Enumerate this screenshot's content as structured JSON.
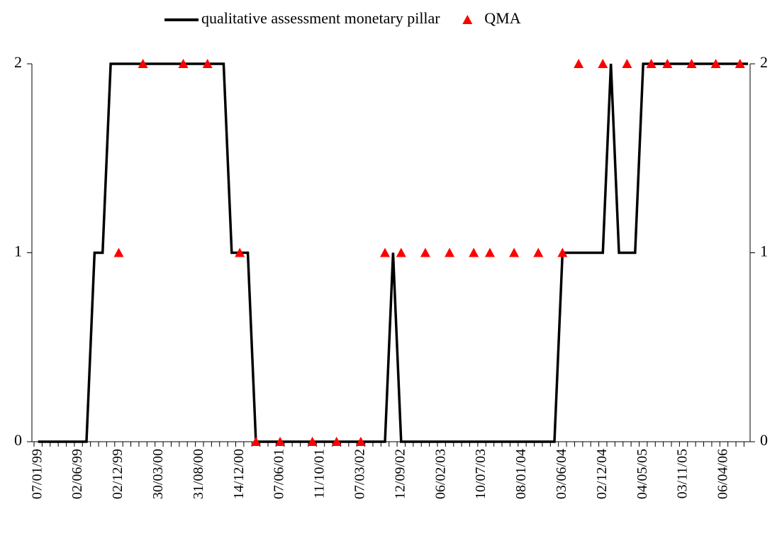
{
  "chart_data": {
    "type": "line",
    "categories": [
      "07/01/99",
      null,
      null,
      null,
      null,
      "02/06/99",
      null,
      null,
      null,
      null,
      "02/12/99",
      null,
      null,
      null,
      null,
      "30/03/00",
      null,
      null,
      null,
      null,
      "31/08/00",
      null,
      null,
      null,
      null,
      "14/12/00",
      null,
      null,
      null,
      null,
      "07/06/01",
      null,
      null,
      null,
      null,
      "11/10/01",
      null,
      null,
      null,
      null,
      "07/03/02",
      null,
      null,
      null,
      null,
      "12/09/02",
      null,
      null,
      null,
      null,
      "06/02/03",
      null,
      null,
      null,
      null,
      "10/07/03",
      null,
      null,
      null,
      null,
      "08/01/04",
      null,
      null,
      null,
      null,
      "03/06/04",
      null,
      null,
      null,
      null,
      "02/12/04",
      null,
      null,
      null,
      null,
      "04/05/05",
      null,
      null,
      null,
      null,
      "03/11/05",
      null,
      null,
      null,
      null,
      "06/04/06",
      null,
      null,
      null
    ],
    "series": [
      {
        "name": "qualitative assessment monetary pillar",
        "color": "#000000",
        "style": "line",
        "values": [
          0,
          0,
          0,
          0,
          0,
          0,
          0,
          1,
          1,
          2,
          2,
          2,
          2,
          2,
          2,
          2,
          2,
          2,
          2,
          2,
          2,
          2,
          2,
          2,
          1,
          1,
          1,
          0,
          0,
          0,
          0,
          0,
          0,
          0,
          0,
          0,
          0,
          0,
          0,
          0,
          0,
          0,
          0,
          0,
          1,
          0,
          0,
          0,
          0,
          0,
          0,
          0,
          0,
          0,
          0,
          0,
          0,
          0,
          0,
          0,
          0,
          0,
          0,
          0,
          0,
          1,
          1,
          1,
          1,
          1,
          1,
          2,
          1,
          1,
          1,
          2,
          2,
          2,
          2,
          2,
          2,
          2,
          2,
          2,
          2,
          2,
          2,
          2,
          2
        ]
      },
      {
        "name": "QMA",
        "color": "#ff0000",
        "style": "triangle",
        "values": [
          null,
          null,
          null,
          null,
          null,
          null,
          null,
          null,
          null,
          null,
          1,
          null,
          null,
          2,
          null,
          null,
          null,
          null,
          2,
          null,
          null,
          2,
          null,
          null,
          null,
          1,
          null,
          0,
          null,
          null,
          0,
          null,
          null,
          null,
          0,
          null,
          null,
          0,
          null,
          null,
          0,
          null,
          null,
          1,
          null,
          1,
          null,
          null,
          1,
          null,
          null,
          1,
          null,
          null,
          1,
          null,
          1,
          null,
          null,
          1,
          null,
          null,
          1,
          null,
          null,
          1,
          null,
          2,
          null,
          null,
          2,
          null,
          null,
          2,
          null,
          null,
          2,
          null,
          2,
          null,
          null,
          2,
          null,
          null,
          2,
          null,
          null,
          2,
          null
        ]
      }
    ],
    "ylim": [
      0,
      2
    ],
    "yticks": [
      0,
      1,
      2
    ],
    "y2lim": [
      0,
      2
    ],
    "y2ticks": [
      0,
      1,
      2
    ],
    "legend": "top"
  }
}
